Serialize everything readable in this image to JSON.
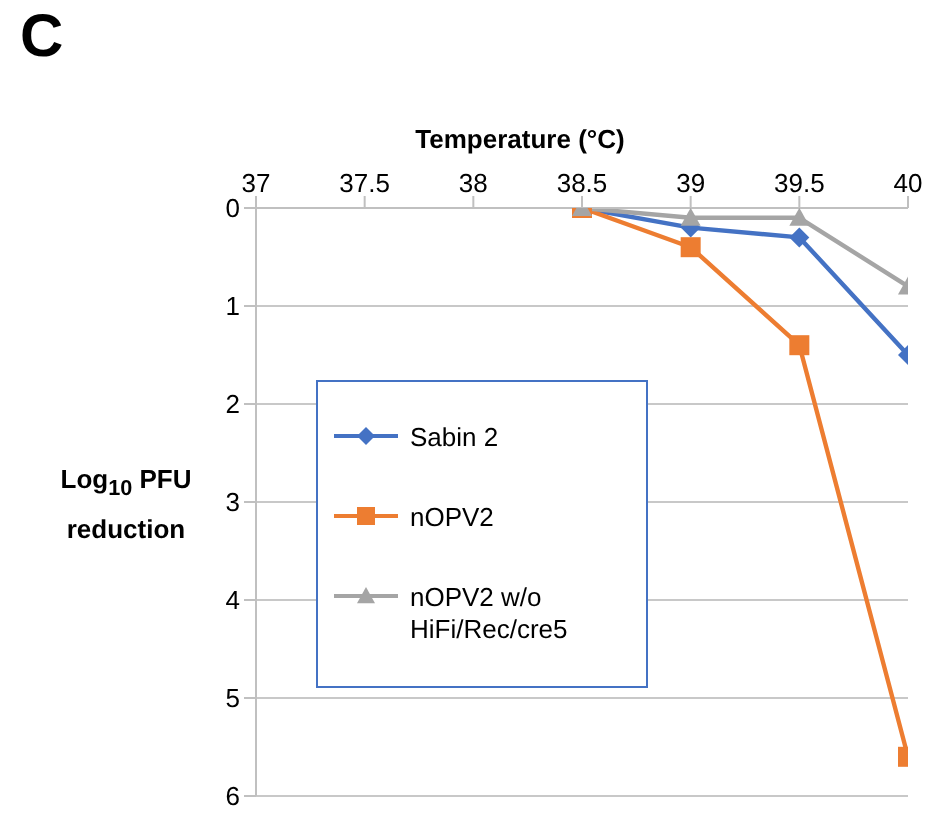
{
  "chart_data": {
    "type": "line",
    "title": "C",
    "xlabel": "Temperature (°C)",
    "ylabel": "Log$_{10}$ PFU reduction",
    "x": [
      38.5,
      39,
      39.5,
      40
    ],
    "series": [
      {
        "name": "Sabin 2",
        "color": "#4472c4",
        "marker": "diamond",
        "values": [
          0,
          0.2,
          0.3,
          1.5
        ]
      },
      {
        "name": "nOPV2",
        "color": "#ed7d31",
        "marker": "square",
        "values": [
          0,
          0.4,
          1.4,
          5.6
        ]
      },
      {
        "name": "nOPV2 w/o HiFi/Rec/cre5",
        "color": "#a5a5a5",
        "marker": "triangle",
        "values": [
          0,
          0.1,
          0.1,
          0.8
        ]
      }
    ],
    "xlim": [
      37,
      40
    ],
    "xticks": [
      37,
      37.5,
      38,
      38.5,
      39,
      39.5,
      40
    ],
    "ylim": [
      6,
      0
    ],
    "yticks": [
      0,
      1,
      2,
      3,
      4,
      5,
      6
    ],
    "grid": "y",
    "legend": "left",
    "line_style": "solid"
  }
}
